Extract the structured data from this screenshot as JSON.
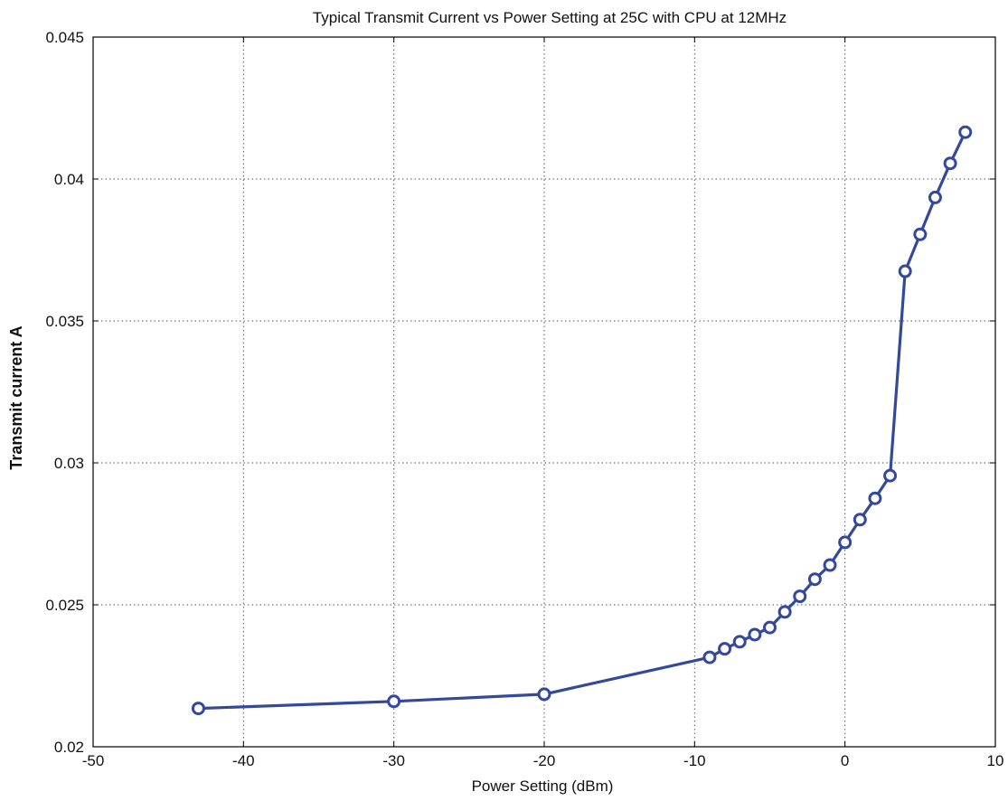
{
  "chart_data": {
    "type": "line",
    "title": "Typical Transmit Current vs Power Setting at 25C with CPU at 12MHz",
    "xlabel": "Power Setting (dBm)",
    "ylabel": "Transmit current  A",
    "xlim": [
      -50,
      10
    ],
    "ylim": [
      0.02,
      0.045
    ],
    "xticks": [
      "-50",
      "-40",
      "-30",
      "-20",
      "-10",
      "0",
      "10"
    ],
    "yticks": [
      "0.02",
      "0.025",
      "0.03",
      "0.035",
      "0.04",
      "0.045"
    ],
    "grid": true,
    "series": [
      {
        "color": "#34499b",
        "marker": "circle",
        "x": [
          -43,
          -30,
          -20,
          -9,
          -8,
          -7,
          -6,
          -5,
          -4,
          -3,
          -2,
          -1,
          0,
          1,
          2,
          3,
          4,
          5,
          6,
          7,
          8
        ],
        "y": [
          0.02135,
          0.0216,
          0.02185,
          0.02315,
          0.02345,
          0.0237,
          0.02395,
          0.0242,
          0.02475,
          0.0253,
          0.0259,
          0.0264,
          0.0272,
          0.028,
          0.02875,
          0.02955,
          0.03675,
          0.03805,
          0.03935,
          0.04055,
          0.04165
        ]
      }
    ]
  }
}
